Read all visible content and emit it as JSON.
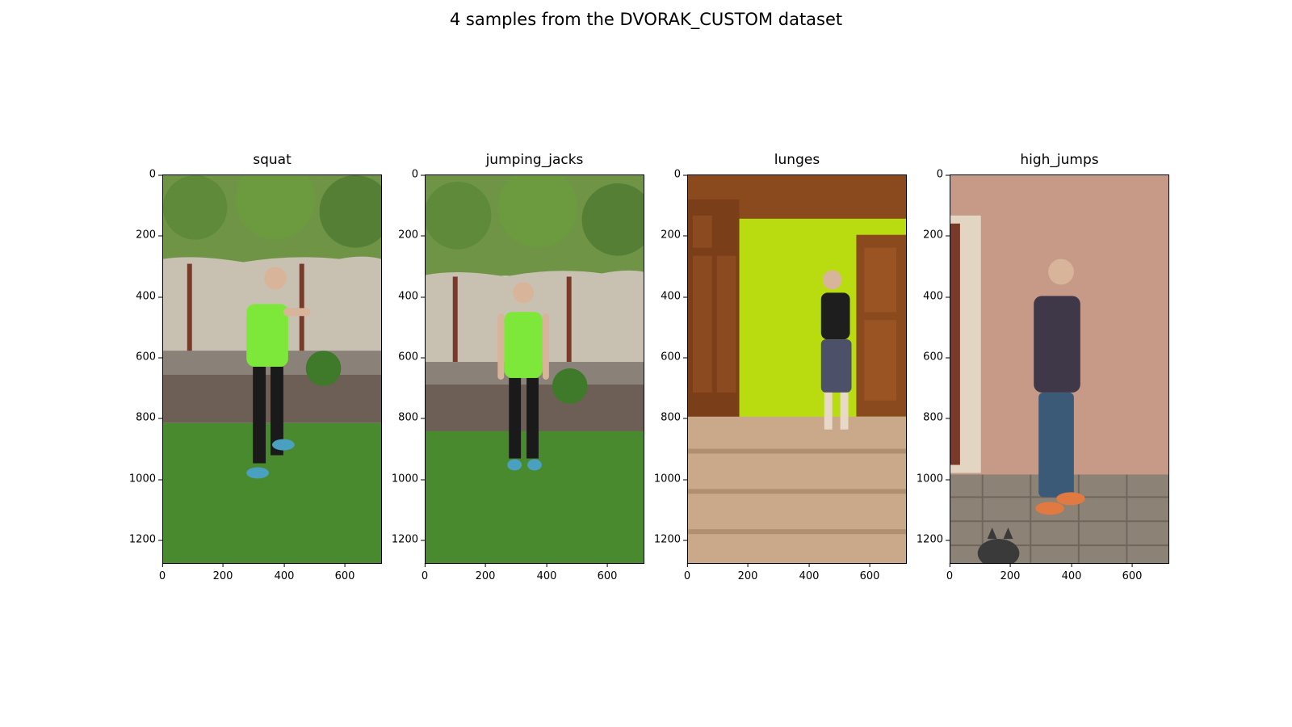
{
  "figure": {
    "title": "4 samples from the DVORAK_CUSTOM dataset"
  },
  "panels": [
    {
      "label": "squat",
      "scene": "outdoor-garden"
    },
    {
      "label": "jumping_jacks",
      "scene": "outdoor-garden"
    },
    {
      "label": "lunges",
      "scene": "indoor-room"
    },
    {
      "label": "high_jumps",
      "scene": "outdoor-wall"
    }
  ],
  "axes": {
    "x_ticks": [
      "0",
      "200",
      "400",
      "600"
    ],
    "y_ticks": [
      "0",
      "200",
      "400",
      "600",
      "800",
      "1000",
      "1200"
    ],
    "x_tick_values": [
      0,
      200,
      400,
      600
    ],
    "y_tick_values": [
      0,
      200,
      400,
      600,
      800,
      1000,
      1200
    ],
    "x_max": 720,
    "y_max": 1280
  },
  "colors": {
    "grass": "#4a8a2e",
    "tree": "#5f8a3a",
    "fence": "#c8c1b2",
    "shirt_green": "#7ee83a",
    "wall_lime": "#b8dc10",
    "wood": "#8a4a1e",
    "floor": "#c9a98a",
    "wall_pink": "#c79a88",
    "pavement": "#8c8276"
  }
}
